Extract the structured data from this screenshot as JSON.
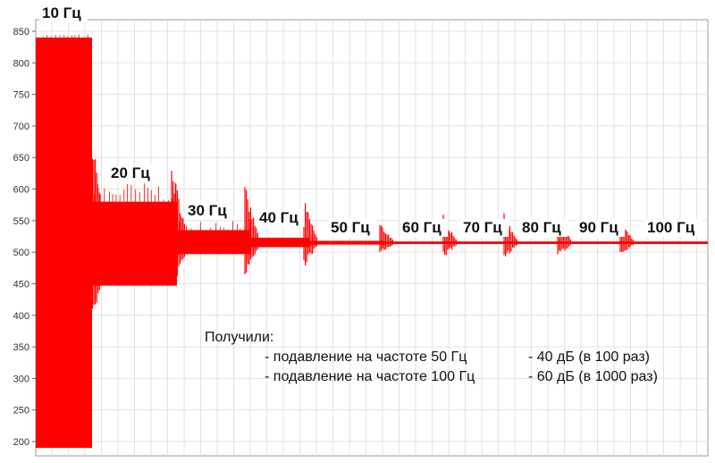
{
  "chart_data": {
    "type": "line",
    "title": "",
    "xlabel": "",
    "ylabel": "",
    "ylim": [
      185,
      865
    ],
    "y_ticks": [
      200,
      250,
      300,
      350,
      400,
      450,
      500,
      550,
      600,
      650,
      700,
      750,
      800,
      850
    ],
    "grid": true,
    "series_color": "#ff0000",
    "baseline": 515,
    "segments": [
      {
        "label": "10 Гц",
        "low": 190,
        "high": 840,
        "peak": 870
      },
      {
        "label": "20 Гц",
        "low": 447,
        "high": 580,
        "peak": 752
      },
      {
        "label": "30 Гц",
        "low": 497,
        "high": 535,
        "peak": 645
      },
      {
        "label": "40 Гц",
        "low": 508,
        "high": 523,
        "peak": 607
      },
      {
        "label": "50 Гц",
        "low": 512,
        "high": 518,
        "peak": 585
      },
      {
        "label": "60 Гц",
        "low": 513,
        "high": 517,
        "peak": 548
      },
      {
        "label": "70 Гц",
        "low": 513,
        "high": 517,
        "peak": 560
      },
      {
        "label": "80 Гц",
        "low": 513,
        "high": 517,
        "peak": 562
      },
      {
        "label": "90 Гц",
        "low": 513,
        "high": 517,
        "peak": 557
      },
      {
        "label": "100 Гц",
        "low": 513,
        "high": 517,
        "peak": 550
      }
    ]
  },
  "annotation": {
    "heading": "Получили:",
    "line1_left": "- подавление на частоте 50 Гц",
    "line1_right": "- 40 дБ (в 100 раз)",
    "line2_left": "- подавление на частоте 100 Гц",
    "line2_right": "- 60 дБ (в 1000 раз)"
  }
}
